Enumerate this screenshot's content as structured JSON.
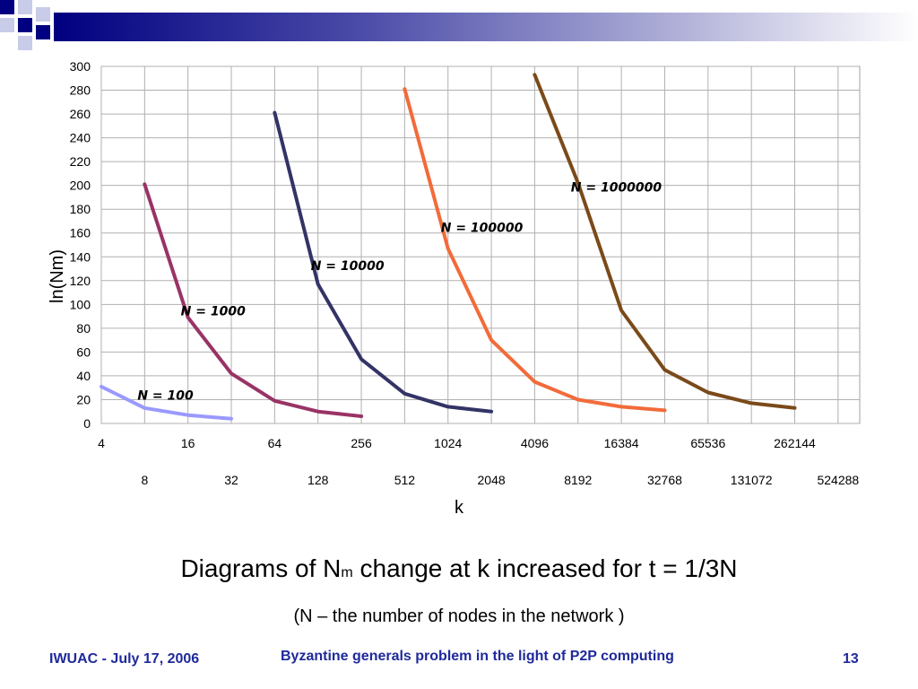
{
  "slide": {
    "caption_main": "Diagrams of N",
    "caption_sub": "m",
    "caption_rest": " change at k increased for t = 1/3N",
    "subcaption": "(N – the number of nodes in the network )",
    "footer_left": "IWUAC - July 17, 2006",
    "footer_center": "Byzantine generals problem in the light of P2P computing",
    "footer_right": "13",
    "accent_color": "#1f2a9a"
  },
  "chart_data": {
    "type": "line",
    "xlabel": "k",
    "ylabel": "ln(Nm)",
    "x_scale": "log2",
    "x_ticks_upper": [
      4,
      16,
      64,
      256,
      1024,
      4096,
      16384,
      65536,
      262144
    ],
    "x_ticks_lower": [
      8,
      32,
      128,
      512,
      2048,
      8192,
      32768,
      131072,
      524288
    ],
    "x_tick_labels_upper": [
      "4",
      "16",
      "64",
      "256",
      "1024",
      "4096",
      "16384",
      "65536",
      "262144"
    ],
    "x_tick_labels_lower": [
      "8",
      "32",
      "128",
      "512",
      "2048",
      "8192",
      "32768",
      "131072",
      "524288"
    ],
    "xlim": [
      4,
      524288
    ],
    "ylim": [
      0,
      300
    ],
    "y_ticks": [
      0,
      20,
      40,
      60,
      80,
      100,
      120,
      140,
      160,
      180,
      200,
      220,
      240,
      260,
      280,
      300
    ],
    "y_tick_labels": [
      "0",
      "20",
      "40",
      "60",
      "80",
      "100",
      "120",
      "140",
      "160",
      "180",
      "200",
      "220",
      "240",
      "260",
      "280",
      "300"
    ],
    "grid": true,
    "series": [
      {
        "name": "N = 100",
        "color": "#9999ff",
        "x": [
          4,
          8,
          16,
          32
        ],
        "y": [
          31,
          13,
          7,
          4
        ]
      },
      {
        "name": "N = 1000",
        "color": "#993366",
        "x": [
          8,
          16,
          32,
          64,
          128,
          256
        ],
        "y": [
          201,
          89,
          42,
          19,
          10,
          6
        ]
      },
      {
        "name": "N = 10000",
        "color": "#333366",
        "x": [
          64,
          128,
          256,
          512,
          1024,
          2048
        ],
        "y": [
          261,
          117,
          54,
          25,
          14,
          10
        ]
      },
      {
        "name": "N = 100000",
        "color": "#f26b3a",
        "x": [
          512,
          1024,
          2048,
          4096,
          8192,
          16384,
          32768
        ],
        "y": [
          281,
          147,
          70,
          35,
          20,
          14,
          11
        ]
      },
      {
        "name": "N = 1000000",
        "color": "#7a4a1a",
        "x": [
          4096,
          8192,
          16384,
          32768,
          65536,
          131072,
          262144
        ],
        "y": [
          293,
          202,
          95,
          45,
          26,
          17,
          13
        ]
      }
    ],
    "annotations": [
      {
        "series": 0,
        "text": "N = 100",
        "at_x": 8,
        "at_y": 20
      },
      {
        "series": 1,
        "text": "N = 1000",
        "at_x": 16,
        "at_y": 91
      },
      {
        "series": 2,
        "text": "N = 10000",
        "at_x": 128,
        "at_y": 129
      },
      {
        "series": 3,
        "text": "N = 100000",
        "at_x": 1024,
        "at_y": 161
      },
      {
        "series": 4,
        "text": "N = 1000000",
        "at_x": 8192,
        "at_y": 195
      }
    ]
  }
}
